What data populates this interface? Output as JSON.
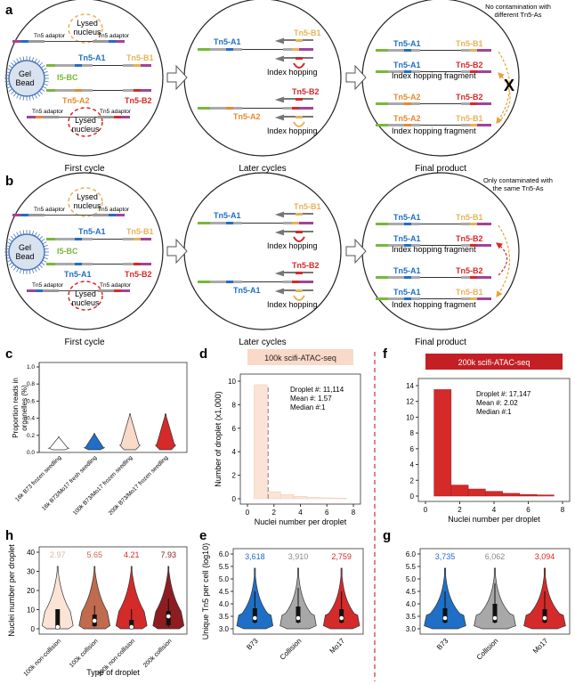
{
  "labels": {
    "a": "a",
    "b": "b",
    "c": "c",
    "d": "d",
    "e": "e",
    "f": "f",
    "g": "g",
    "h": "h"
  },
  "panel_a": {
    "cycle1": {
      "lysed": "Lysed\nnucleus",
      "tn5_adaptor": "Tn5 adaptor",
      "gel_bead": "Gel\nBead",
      "i5bc": "I5-BC",
      "tn5_a1": "Tn5-A1",
      "tn5_b1": "Tn5-B1",
      "tn5_a2": "Tn5-A2",
      "tn5_b2": "Tn5-B2",
      "caption": "First cycle"
    },
    "later": {
      "a1": "Tn5-A1",
      "b1": "Tn5-B1",
      "b2": "Tn5-B2",
      "a2": "Tn5-A2",
      "hop": "Index hopping",
      "caption": "Later cycles"
    },
    "final": {
      "note": "No contamination with\ndifferent Tn5-As",
      "a1": "Tn5-A1",
      "b1": "Tn5-B1",
      "b2": "Tn5-B2",
      "a2": "Tn5-A2",
      "frag": "Index hopping fragment",
      "x": "X",
      "caption": "Final product"
    }
  },
  "panel_b": {
    "cycle1": {
      "lysed": "Lysed\nnucleus",
      "tn5_adaptor": "Tn5 adaptor",
      "gel_bead": "Gel\nBead",
      "i5bc": "I5-BC",
      "tn5_a1": "Tn5-A1",
      "tn5_b1": "Tn5-B1",
      "tn5_b2": "Tn5-B2",
      "caption": "First cycle"
    },
    "later": {
      "a1": "Tn5-A1",
      "b1": "Tn5-B1",
      "b2": "Tn5-B2",
      "hop": "Index hopping",
      "caption": "Later cycles"
    },
    "final": {
      "note": "Only contaminated with\nthe same Tn5-As",
      "a1": "Tn5-A1",
      "b1": "Tn5-B1",
      "b2": "Tn5-B2",
      "frag": "Index hopping fragment",
      "caption": "Final product"
    }
  },
  "panel_c": {
    "ylabel": "Proportion reads in\norganelles (%)",
    "yticks": [
      "0.0",
      "0.2",
      "0.4",
      "0.6",
      "0.8",
      "1.0"
    ],
    "categories": [
      "16k B73 frozen seedling",
      "16k B73/Mo17 fresh seedling",
      "100k B73/Mo17 frozen seedling",
      "200k B73/Mo17 frozen seedling"
    ]
  },
  "panel_d": {
    "title": "100k scifi-ATAC-seq",
    "ylabel": "Number of droplet (x1,000)",
    "xlabel": "Nuclei number per droplet",
    "stats": [
      "Droplet #: 11,114",
      "Mean #: 1.57",
      "Median #:1"
    ],
    "yticks": [
      "0",
      "2",
      "4",
      "6",
      "8",
      "10"
    ],
    "xticks": [
      "0",
      "2",
      "4",
      "6",
      "8"
    ]
  },
  "panel_f": {
    "title": "200k scifi-ATAC-seq",
    "xlabel": "Nuclei number per droplet",
    "stats": [
      "Droplet #: 17,147",
      "Mean #: 2.02",
      "Median #:1"
    ],
    "yticks": [
      "0",
      "2",
      "4",
      "6",
      "8",
      "10",
      "12",
      "14"
    ],
    "xticks": [
      "0",
      "2",
      "4",
      "6",
      "8"
    ]
  },
  "panel_e": {
    "ylabel": "Unique Tn5 per cell (log10)",
    "yticks": [
      "3.0",
      "3.5",
      "4.0",
      "4.5",
      "5.0",
      "5.5",
      "6.0"
    ],
    "categories": [
      "B73",
      "Collision",
      "Mo17"
    ],
    "values": [
      "3,618",
      "3,910",
      "2,759"
    ]
  },
  "panel_g": {
    "yticks": [
      "3.0",
      "3.5",
      "4.0",
      "4.5",
      "5.0",
      "5.5",
      "6.0"
    ],
    "categories": [
      "B73",
      "Collision",
      "Mo17"
    ],
    "values": [
      "3,735",
      "6,062",
      "3,094"
    ]
  },
  "panel_h": {
    "ylabel": "Nuclei number per droplet",
    "xlabel": "Type of droplet",
    "yticks": [
      "0",
      "10",
      "20",
      "30",
      "40"
    ],
    "categories": [
      "100k non-collision",
      "100k collision",
      "200k non-collision",
      "200k collision"
    ],
    "values": [
      "2.97",
      "5.65",
      "4.21",
      "7.93"
    ]
  },
  "colors": {
    "blue": "#1f6fc6",
    "grey": "#a8a8a8",
    "red": "#d42a2a",
    "orange": "#e58a2e",
    "tan": "#e8b25a",
    "green": "#78b83a",
    "purple": "#a0449a",
    "peach": "#f9d9c8",
    "darkred": "#8e1d22",
    "salmon": "#c06a4e"
  },
  "chart_data": [
    {
      "type": "bar",
      "title": "100k scifi-ATAC-seq",
      "xlabel": "Nuclei number per droplet",
      "ylabel": "Number of droplet (x1,000)",
      "x": [
        1,
        2,
        3,
        4,
        5,
        6,
        7
      ],
      "values": [
        9.7,
        0.6,
        0.35,
        0.2,
        0.12,
        0.08,
        0.05
      ],
      "ylim": [
        0,
        10
      ],
      "xlim": [
        0,
        8
      ]
    },
    {
      "type": "bar",
      "title": "200k scifi-ATAC-seq",
      "xlabel": "Nuclei number per droplet",
      "x": [
        1,
        2,
        3,
        4,
        5,
        6,
        7
      ],
      "values": [
        13.5,
        1.4,
        0.9,
        0.6,
        0.35,
        0.2,
        0.15
      ],
      "ylim": [
        0,
        14
      ],
      "xlim": [
        0,
        8
      ]
    }
  ]
}
